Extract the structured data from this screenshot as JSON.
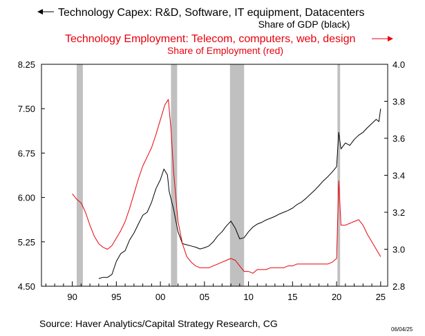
{
  "titles": {
    "black_title": "Technology Capex: R&D, Software, IT equipment, Datacenters",
    "black_subtitle": "Share of GDP (black)",
    "red_title": "Technology Employment: Telecom, computers, web, design",
    "red_subtitle": "Share of Employment (red)"
  },
  "source": "Source:  Haver Analytics/Capital Strategy Research, CG",
  "date_stamp": "06/04/25",
  "colors": {
    "capex": "#000000",
    "employment": "#e8000b",
    "recession": "#c0c0c0",
    "arrow_black": "#000000",
    "arrow_red": "#e8000b"
  },
  "chart_data": {
    "type": "line",
    "grid": false,
    "x_label": "",
    "x_range": [
      1986.5,
      2025.8
    ],
    "x_ticks": [
      1990,
      1995,
      2000,
      2005,
      2010,
      2015,
      2020,
      2025
    ],
    "x_tick_labels": [
      "90",
      "95",
      "00",
      "05",
      "10",
      "15",
      "20",
      "25"
    ],
    "left_axis": {
      "range": [
        4.5,
        8.25
      ],
      "ticks": [
        4.5,
        5.25,
        6.0,
        6.75,
        7.5,
        8.25
      ],
      "tick_labels": [
        "4.50",
        "5.25",
        "6.00",
        "6.75",
        "7.50",
        "8.25"
      ]
    },
    "right_axis": {
      "range": [
        2.8,
        4.0
      ],
      "ticks": [
        2.8,
        3.0,
        3.2,
        3.4,
        3.6,
        3.8,
        4.0
      ],
      "tick_labels": [
        "2.8",
        "3.0",
        "3.2",
        "3.4",
        "3.6",
        "3.8",
        "4.0"
      ]
    },
    "recessions": [
      [
        1990.5,
        1991.2
      ],
      [
        2001.2,
        2001.9
      ],
      [
        2007.9,
        2009.5
      ],
      [
        2020.1,
        2020.4
      ]
    ],
    "series": [
      {
        "axis": "left",
        "color": "#000000",
        "points": [
          [
            1993.0,
            4.63
          ],
          [
            1993.5,
            4.65
          ],
          [
            1994.0,
            4.65
          ],
          [
            1994.5,
            4.7
          ],
          [
            1995.0,
            4.92
          ],
          [
            1995.5,
            5.05
          ],
          [
            1996.0,
            5.1
          ],
          [
            1996.5,
            5.28
          ],
          [
            1997.0,
            5.4
          ],
          [
            1997.5,
            5.55
          ],
          [
            1998.0,
            5.7
          ],
          [
            1998.5,
            5.75
          ],
          [
            1999.0,
            5.92
          ],
          [
            1999.5,
            6.15
          ],
          [
            2000.0,
            6.3
          ],
          [
            2000.4,
            6.48
          ],
          [
            2000.8,
            6.38
          ],
          [
            2001.0,
            6.1
          ],
          [
            2001.5,
            5.8
          ],
          [
            2002.0,
            5.42
          ],
          [
            2002.5,
            5.22
          ],
          [
            2003.0,
            5.2
          ],
          [
            2003.5,
            5.18
          ],
          [
            2004.0,
            5.16
          ],
          [
            2004.5,
            5.13
          ],
          [
            2005.0,
            5.15
          ],
          [
            2005.5,
            5.18
          ],
          [
            2006.0,
            5.25
          ],
          [
            2006.5,
            5.35
          ],
          [
            2007.0,
            5.42
          ],
          [
            2007.5,
            5.52
          ],
          [
            2008.0,
            5.6
          ],
          [
            2008.5,
            5.48
          ],
          [
            2009.0,
            5.3
          ],
          [
            2009.5,
            5.32
          ],
          [
            2010.0,
            5.42
          ],
          [
            2010.5,
            5.5
          ],
          [
            2011.0,
            5.55
          ],
          [
            2011.5,
            5.58
          ],
          [
            2012.0,
            5.62
          ],
          [
            2012.5,
            5.65
          ],
          [
            2013.0,
            5.68
          ],
          [
            2013.5,
            5.72
          ],
          [
            2014.0,
            5.75
          ],
          [
            2014.5,
            5.78
          ],
          [
            2015.0,
            5.82
          ],
          [
            2015.5,
            5.88
          ],
          [
            2016.0,
            5.92
          ],
          [
            2016.5,
            5.98
          ],
          [
            2017.0,
            6.05
          ],
          [
            2017.5,
            6.12
          ],
          [
            2018.0,
            6.2
          ],
          [
            2018.5,
            6.28
          ],
          [
            2019.0,
            6.35
          ],
          [
            2019.5,
            6.43
          ],
          [
            2020.0,
            6.52
          ],
          [
            2020.25,
            7.1
          ],
          [
            2020.5,
            6.82
          ],
          [
            2021.0,
            6.92
          ],
          [
            2021.5,
            6.88
          ],
          [
            2022.0,
            6.98
          ],
          [
            2022.5,
            7.05
          ],
          [
            2023.0,
            7.1
          ],
          [
            2023.5,
            7.18
          ],
          [
            2024.0,
            7.25
          ],
          [
            2024.5,
            7.32
          ],
          [
            2024.8,
            7.28
          ],
          [
            2025.0,
            7.5
          ]
        ]
      },
      {
        "axis": "right",
        "color": "#e8000b",
        "points": [
          [
            1990.0,
            3.3
          ],
          [
            1990.5,
            3.27
          ],
          [
            1991.0,
            3.25
          ],
          [
            1991.5,
            3.2
          ],
          [
            1992.0,
            3.13
          ],
          [
            1992.5,
            3.07
          ],
          [
            1993.0,
            3.03
          ],
          [
            1993.5,
            3.01
          ],
          [
            1994.0,
            3.0
          ],
          [
            1994.5,
            3.02
          ],
          [
            1995.0,
            3.06
          ],
          [
            1995.5,
            3.1
          ],
          [
            1996.0,
            3.15
          ],
          [
            1996.5,
            3.22
          ],
          [
            1997.0,
            3.3
          ],
          [
            1997.5,
            3.38
          ],
          [
            1998.0,
            3.45
          ],
          [
            1998.5,
            3.5
          ],
          [
            1999.0,
            3.55
          ],
          [
            1999.5,
            3.62
          ],
          [
            2000.0,
            3.7
          ],
          [
            2000.5,
            3.78
          ],
          [
            2000.9,
            3.81
          ],
          [
            2001.2,
            3.65
          ],
          [
            2001.5,
            3.42
          ],
          [
            2002.0,
            3.15
          ],
          [
            2002.5,
            3.03
          ],
          [
            2003.0,
            2.96
          ],
          [
            2003.5,
            2.93
          ],
          [
            2004.0,
            2.91
          ],
          [
            2004.5,
            2.9
          ],
          [
            2005.0,
            2.9
          ],
          [
            2005.5,
            2.9
          ],
          [
            2006.0,
            2.91
          ],
          [
            2006.5,
            2.92
          ],
          [
            2007.0,
            2.93
          ],
          [
            2007.5,
            2.94
          ],
          [
            2008.0,
            2.95
          ],
          [
            2008.5,
            2.94
          ],
          [
            2009.0,
            2.91
          ],
          [
            2009.5,
            2.88
          ],
          [
            2010.0,
            2.88
          ],
          [
            2010.5,
            2.87
          ],
          [
            2011.0,
            2.89
          ],
          [
            2011.5,
            2.89
          ],
          [
            2012.0,
            2.89
          ],
          [
            2012.5,
            2.9
          ],
          [
            2013.0,
            2.9
          ],
          [
            2013.5,
            2.9
          ],
          [
            2014.0,
            2.9
          ],
          [
            2014.5,
            2.91
          ],
          [
            2015.0,
            2.91
          ],
          [
            2015.5,
            2.92
          ],
          [
            2016.0,
            2.92
          ],
          [
            2016.5,
            2.92
          ],
          [
            2017.0,
            2.92
          ],
          [
            2017.5,
            2.92
          ],
          [
            2018.0,
            2.92
          ],
          [
            2018.5,
            2.92
          ],
          [
            2019.0,
            2.92
          ],
          [
            2019.5,
            2.93
          ],
          [
            2020.0,
            2.95
          ],
          [
            2020.25,
            3.37
          ],
          [
            2020.5,
            3.13
          ],
          [
            2021.0,
            3.13
          ],
          [
            2021.5,
            3.14
          ],
          [
            2022.0,
            3.15
          ],
          [
            2022.5,
            3.16
          ],
          [
            2023.0,
            3.13
          ],
          [
            2023.5,
            3.08
          ],
          [
            2024.0,
            3.04
          ],
          [
            2024.5,
            3.0
          ],
          [
            2025.0,
            2.96
          ]
        ]
      }
    ]
  }
}
